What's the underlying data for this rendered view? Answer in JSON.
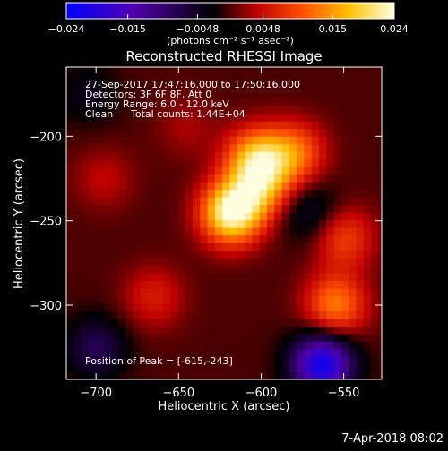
{
  "colorbar": {
    "tick_labels": [
      "−0.024",
      "−0.015",
      "−0.0048",
      "0.0048",
      "0.015",
      "0.024"
    ],
    "tick_values": [
      -0.024,
      -0.015,
      -0.0048,
      0.0048,
      0.015,
      0.024
    ],
    "range": [
      -0.024,
      0.024
    ],
    "units_label": "(photons cm⁻² s⁻¹ asec⁻²)"
  },
  "chart_data": {
    "type": "heatmap",
    "title": "Reconstructed RHESSI Image",
    "xlabel": "Heliocentric X (arcsec)",
    "ylabel": "Heliocentric Y (arcsec)",
    "xlim": [
      -718,
      -527
    ],
    "ylim": [
      -344,
      -159
    ],
    "x_ticks": [
      -700,
      -650,
      -600,
      -550
    ],
    "y_ticks": [
      -200,
      -250,
      -300
    ],
    "x_tick_labels": [
      "−700",
      "−650",
      "−600",
      "−550"
    ],
    "y_tick_labels": [
      "−200",
      "−250",
      "−300"
    ],
    "color_scale_range": [
      -0.024,
      0.024
    ],
    "colormap": [
      "#0000ff",
      "#600080",
      "#000000",
      "#d00000",
      "#ff8800",
      "#ffff80",
      "#ffffff"
    ],
    "peak": [
      -615,
      -243
    ],
    "features": [
      {
        "x": -618,
        "y": -245,
        "value": 0.024
      },
      {
        "x": -603,
        "y": -213,
        "value": 0.016
      },
      {
        "x": -580,
        "y": -210,
        "value": 0.012
      },
      {
        "x": -600,
        "y": -230,
        "value": 0.012
      },
      {
        "x": -555,
        "y": -300,
        "value": 0.013
      },
      {
        "x": -550,
        "y": -260,
        "value": 0.009
      },
      {
        "x": -665,
        "y": -295,
        "value": 0.006
      },
      {
        "x": -695,
        "y": -225,
        "value": 0.004
      },
      {
        "x": -645,
        "y": -195,
        "value": 0.003
      },
      {
        "x": -563,
        "y": -335,
        "value": -0.022
      },
      {
        "x": -700,
        "y": -325,
        "value": -0.008
      },
      {
        "x": -570,
        "y": -245,
        "value": -0.006
      },
      {
        "x": -705,
        "y": -175,
        "value": -0.004
      }
    ],
    "annotations": {
      "time_range": "27-Sep-2017 17:47:16.000 to 17:50:16.000",
      "detectors": "Detectors: 3F 6F 8F, Att 0",
      "energy_range": "Energy Range: 6.0 - 12.0 keV",
      "clean": "Clean",
      "total_counts": "Total counts: 1.44E+04",
      "peak_position": "Position of Peak = [-615,-243]"
    }
  },
  "footer": {
    "date": "7-Apr-2018 08:02"
  }
}
